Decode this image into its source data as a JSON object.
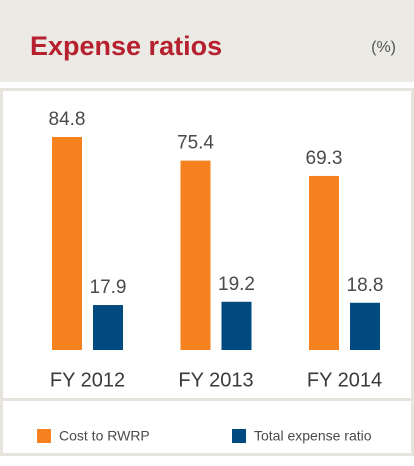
{
  "chart_data": {
    "type": "bar",
    "title": "Expense ratios",
    "unit": "(%)",
    "categories": [
      "FY 2012",
      "FY 2013",
      "FY 2014"
    ],
    "series": [
      {
        "name": "Cost to RWRP",
        "color": "#f5821f",
        "values": [
          84.8,
          75.4,
          69.3
        ]
      },
      {
        "name": "Total expense ratio",
        "color": "#004a80",
        "values": [
          17.9,
          19.2,
          18.8
        ]
      }
    ]
  }
}
